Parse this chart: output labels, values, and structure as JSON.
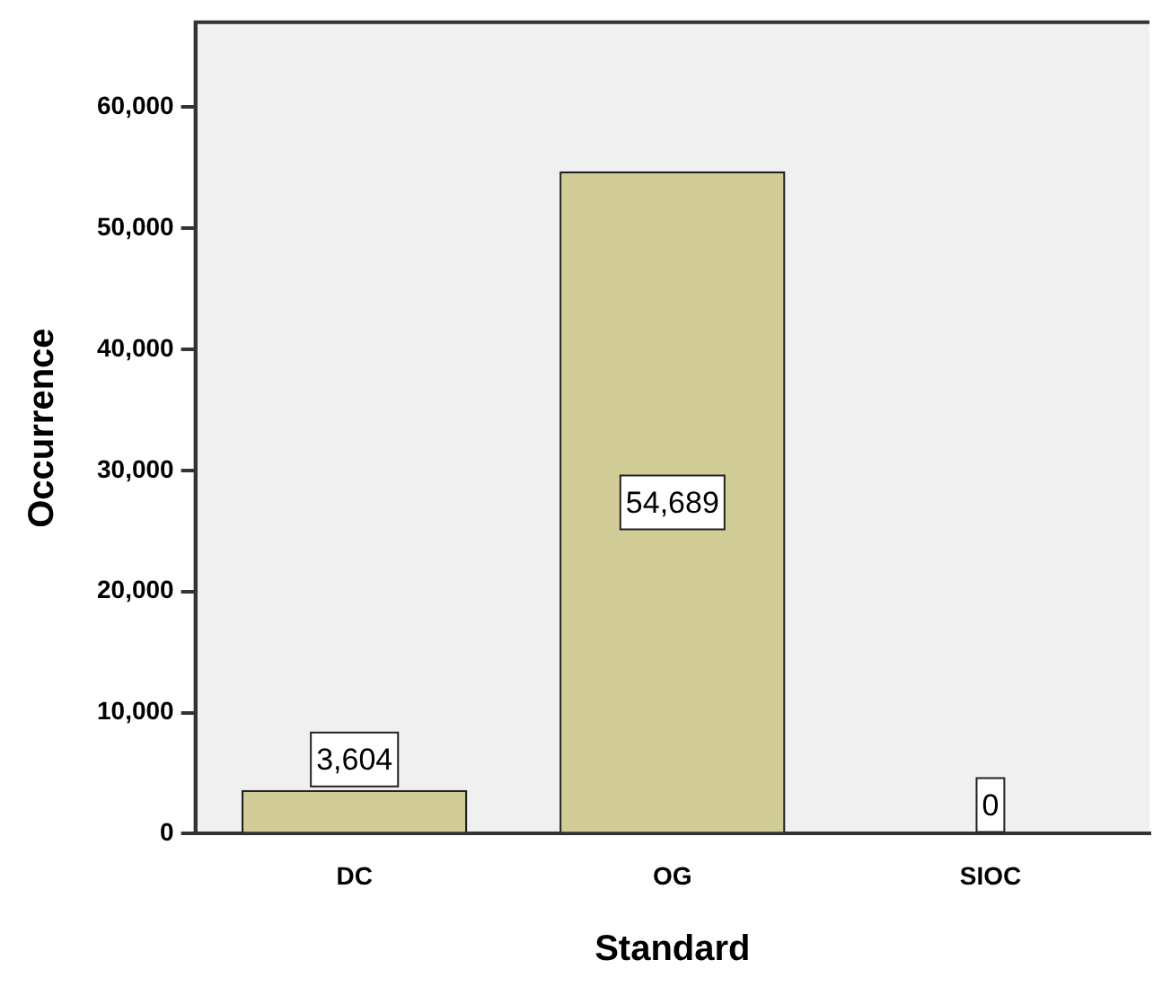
{
  "chart_data": {
    "type": "bar",
    "xlabel": "Standard",
    "ylabel": "Occurrence",
    "categories": [
      "DC",
      "OG",
      "SIOC"
    ],
    "values": [
      3604,
      54689,
      0
    ],
    "color": "#d2cd96",
    "ylim": [
      0,
      67000
    ],
    "yticks": [
      {
        "value": 0,
        "label": "0"
      },
      {
        "value": 10000,
        "label": "10,000"
      },
      {
        "value": 20000,
        "label": "20,000"
      },
      {
        "value": 30000,
        "label": "30,000"
      },
      {
        "value": 40000,
        "label": "40,000"
      },
      {
        "value": 50000,
        "label": "50,000"
      },
      {
        "value": 60000,
        "label": "60,000"
      }
    ],
    "value_labels": [
      "3,604",
      "54,689",
      "0"
    ],
    "grid": false,
    "legend": false
  }
}
